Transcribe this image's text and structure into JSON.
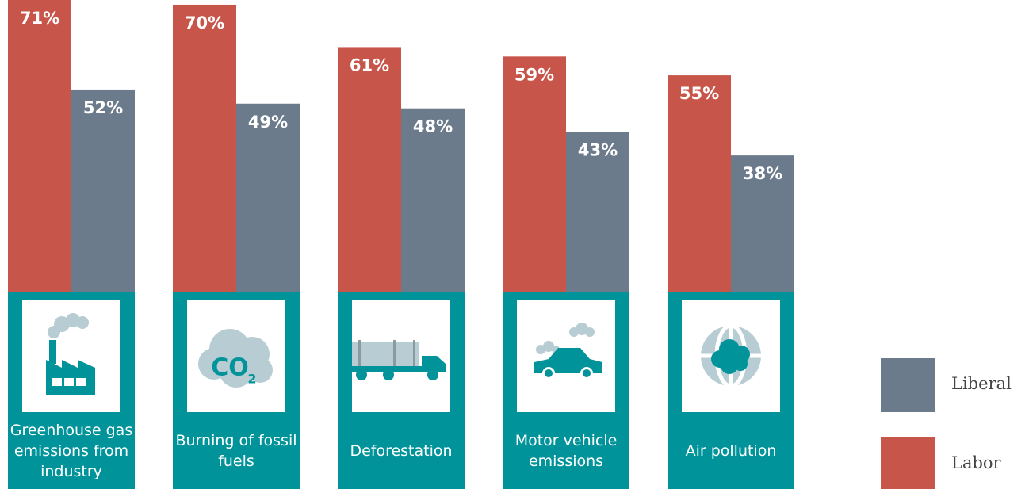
{
  "chart_data": {
    "type": "bar",
    "categories": [
      "Greenhouse gas emissions from industry",
      "Burning of fossil fuels",
      "Deforestation",
      "Motor vehicle emissions",
      "Air pollution"
    ],
    "series": [
      {
        "name": "Labor",
        "color": "#c8554a",
        "values": [
          71,
          70,
          61,
          59,
          55
        ],
        "value_labels": [
          "71%",
          "70%",
          "61%",
          "59%",
          "55%"
        ]
      },
      {
        "name": "Liberal",
        "color": "#6b7b8c",
        "values": [
          52,
          49,
          48,
          43,
          38
        ],
        "value_labels": [
          "52%",
          "49%",
          "48%",
          "43%",
          "38%"
        ]
      }
    ],
    "ylim": [
      0,
      71
    ],
    "annotations": [
      "CO",
      "2"
    ],
    "legend": "right"
  }
}
